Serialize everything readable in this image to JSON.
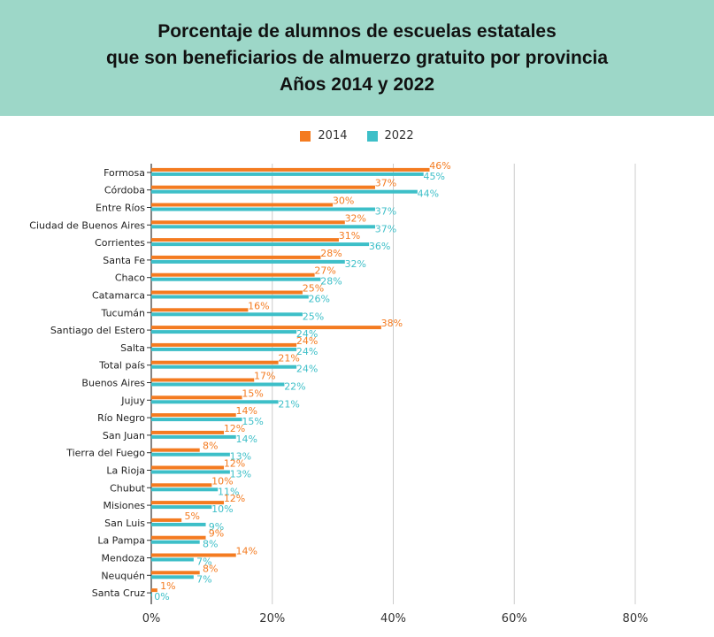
{
  "title_lines": [
    "Porcentaje de alumnos de escuelas estatales",
    "que son beneficiarios de almuerzo gratuito por provincia",
    "Años 2014 y 2022"
  ],
  "colors": {
    "s2014": "#f47b20",
    "s2022": "#3dbfc8",
    "header_bg": "#9dd7c8"
  },
  "chart_data": {
    "type": "bar",
    "orientation": "horizontal",
    "title": "Porcentaje de alumnos de escuelas estatales que son beneficiarios de almuerzo gratuito por provincia Años 2014 y 2022",
    "xlabel": "",
    "ylabel": "",
    "xlim": [
      0,
      80
    ],
    "xticks": [
      "0%",
      "20%",
      "40%",
      "60%",
      "80%"
    ],
    "grid": true,
    "legend_position": "top-center",
    "categories": [
      "Formosa",
      "Córdoba",
      "Entre Ríos",
      "Ciudad de Buenos Aires",
      "Corrientes",
      "Santa Fe",
      "Chaco",
      "Catamarca",
      "Tucumán",
      "Santiago del Estero",
      "Salta",
      "Total país",
      "Buenos Aires",
      "Jujuy",
      "Río Negro",
      "San Juan",
      "Tierra del Fuego",
      "La Rioja",
      "Chubut",
      "Misiones",
      "San Luis",
      "La Pampa",
      "Mendoza",
      "Neuquén",
      "Santa Cruz"
    ],
    "series": [
      {
        "name": "2014",
        "values": [
          46,
          37,
          30,
          32,
          31,
          28,
          27,
          25,
          16,
          38,
          24,
          21,
          17,
          15,
          14,
          12,
          8,
          12,
          10,
          12,
          5,
          9,
          14,
          8,
          1
        ]
      },
      {
        "name": "2022",
        "values": [
          45,
          44,
          37,
          37,
          36,
          32,
          28,
          26,
          25,
          24,
          24,
          24,
          22,
          21,
          15,
          14,
          13,
          13,
          11,
          10,
          9,
          8,
          7,
          7,
          0
        ]
      }
    ]
  }
}
